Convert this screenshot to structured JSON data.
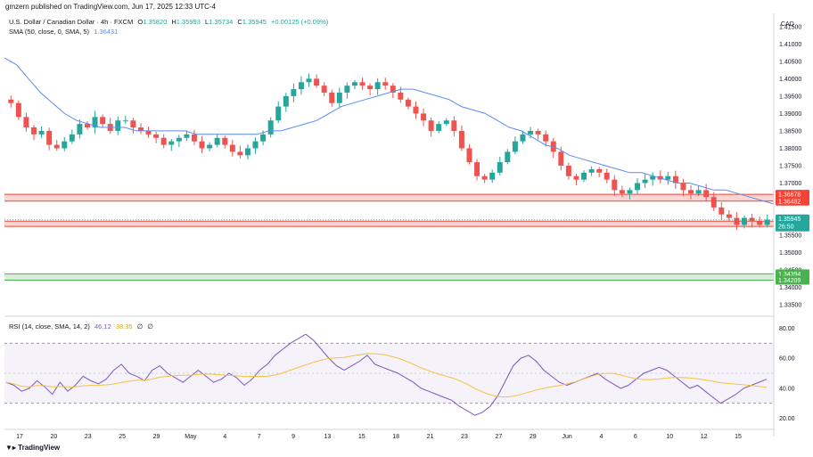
{
  "header": {
    "published": "gmzern published on TradingView.com, Jun 17, 2025 12:33 UTC-4"
  },
  "symbol": {
    "title": "U.S. Dollar / Canadian Dollar · 4h · FXCM",
    "o_label": "O",
    "o": "1.35820",
    "h_label": "H",
    "h": "1.35993",
    "l_label": "L",
    "l": "1.35734",
    "c_label": "C",
    "c": "1.35945",
    "change": "+0.00125 (+0.09%)"
  },
  "sma": {
    "label": "SMA (50, close, 0, SMA, 5)",
    "value": "1.36431"
  },
  "rsi": {
    "label": "RSI (14, close, SMA, 14, 2)",
    "value": "46.12",
    "ma_value": "38.35",
    "extra1": "∅",
    "extra2": "∅"
  },
  "axis": {
    "currency": "CAD"
  },
  "brand": {
    "name": "TradingView"
  },
  "colors": {
    "up": "#26a69a",
    "down": "#ef5350",
    "sma": "#5b8def",
    "rsi": "#7e57c2",
    "rsi_ma": "#f5c243",
    "zone_red": "#f44336",
    "zone_green": "#4caf50"
  },
  "chart_data": {
    "type": "candlestick",
    "timeframe": "4h",
    "price_axis": {
      "min": 1.3325,
      "max": 1.4175,
      "ticks": [
        "1.41500",
        "1.41000",
        "1.40500",
        "1.40000",
        "1.39500",
        "1.39000",
        "1.38500",
        "1.38000",
        "1.37500",
        "1.37000",
        "1.36500",
        "1.36000",
        "1.35500",
        "1.35000",
        "1.34500",
        "1.34000",
        "1.33500"
      ]
    },
    "time_labels": [
      "17",
      "20",
      "23",
      "25",
      "29",
      "May",
      "4",
      "7",
      "9",
      "13",
      "15",
      "18",
      "21",
      "23",
      "27",
      "29",
      "Jun",
      "4",
      "6",
      "10",
      "12",
      "15"
    ],
    "price_close_path": [
      1.393,
      1.389,
      1.386,
      1.384,
      1.385,
      1.381,
      1.38,
      1.382,
      1.384,
      1.387,
      1.386,
      1.389,
      1.387,
      1.385,
      1.388,
      1.388,
      1.386,
      1.385,
      1.384,
      1.383,
      1.381,
      1.382,
      1.383,
      1.384,
      1.382,
      1.38,
      1.381,
      1.383,
      1.381,
      1.379,
      1.378,
      1.38,
      1.382,
      1.384,
      1.388,
      1.392,
      1.395,
      1.397,
      1.399,
      1.4,
      1.398,
      1.396,
      1.393,
      1.396,
      1.398,
      1.399,
      1.398,
      1.397,
      1.399,
      1.398,
      1.396,
      1.394,
      1.392,
      1.39,
      1.388,
      1.385,
      1.387,
      1.388,
      1.385,
      1.38,
      1.376,
      1.372,
      1.371,
      1.373,
      1.376,
      1.379,
      1.382,
      1.384,
      1.385,
      1.384,
      1.382,
      1.379,
      1.375,
      1.372,
      1.371,
      1.373,
      1.374,
      1.373,
      1.371,
      1.368,
      1.367,
      1.368,
      1.37,
      1.371,
      1.372,
      1.371,
      1.372,
      1.37,
      1.368,
      1.367,
      1.368,
      1.366,
      1.363,
      1.361,
      1.36,
      1.358,
      1.36,
      1.359,
      1.358,
      1.3595
    ],
    "sma_points": [
      1.406,
      1.404,
      1.4,
      1.396,
      1.393,
      1.39,
      1.388,
      1.387,
      1.386,
      1.386,
      1.386,
      1.385,
      1.385,
      1.385,
      1.385,
      1.385,
      1.384,
      1.384,
      1.384,
      1.384,
      1.384,
      1.384,
      1.385,
      1.385,
      1.386,
      1.387,
      1.388,
      1.39,
      1.392,
      1.393,
      1.394,
      1.395,
      1.396,
      1.397,
      1.397,
      1.396,
      1.395,
      1.394,
      1.392,
      1.391,
      1.39,
      1.388,
      1.386,
      1.385,
      1.383,
      1.381,
      1.38,
      1.378,
      1.377,
      1.376,
      1.375,
      1.374,
      1.373,
      1.373,
      1.372,
      1.371,
      1.37,
      1.37,
      1.369,
      1.368,
      1.368,
      1.367,
      1.366,
      1.365,
      1.364
    ],
    "zones": [
      {
        "color": "red",
        "upper": "1.36678",
        "lower": "1.36482"
      },
      {
        "color": "red",
        "upper": "1.35905",
        "lower": "1.35755"
      },
      {
        "color": "green",
        "upper": "1.34394",
        "lower": "1.34209"
      }
    ],
    "last_price": {
      "value": "1.35945",
      "countdown": "26:50"
    },
    "rsi_axis": {
      "min": 15,
      "max": 85,
      "ticks": [
        "80.00",
        "60.00",
        "40.00",
        "20.00"
      ],
      "upper_band": 70,
      "lower_band": 30
    },
    "rsi_values": [
      44,
      42,
      38,
      40,
      45,
      41,
      36,
      44,
      38,
      42,
      48,
      45,
      43,
      46,
      52,
      56,
      50,
      48,
      45,
      52,
      55,
      50,
      47,
      44,
      48,
      52,
      48,
      44,
      46,
      50,
      47,
      42,
      46,
      52,
      56,
      62,
      66,
      70,
      73,
      76,
      72,
      66,
      60,
      55,
      52,
      55,
      58,
      62,
      56,
      54,
      52,
      50,
      47,
      44,
      40,
      38,
      36,
      34,
      32,
      28,
      25,
      22,
      24,
      28,
      35,
      45,
      55,
      60,
      62,
      58,
      52,
      48,
      44,
      42,
      44,
      46,
      48,
      50,
      46,
      43,
      40,
      42,
      46,
      50,
      52,
      54,
      52,
      48,
      44,
      40,
      42,
      38,
      34,
      30,
      33,
      36,
      40,
      42,
      44,
      46
    ]
  }
}
